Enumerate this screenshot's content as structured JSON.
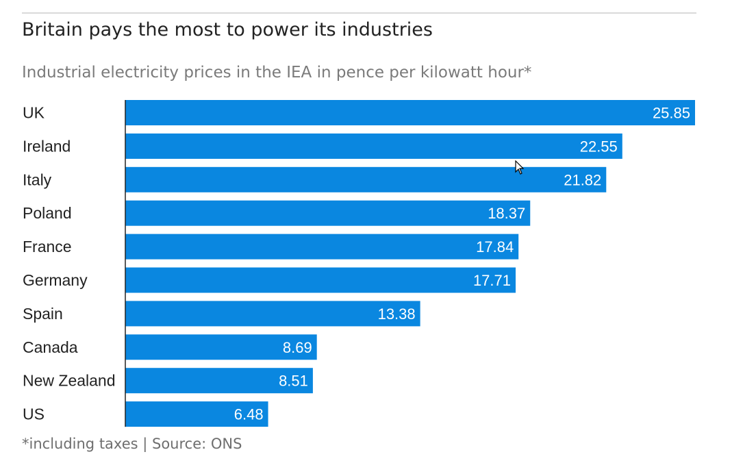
{
  "chart_data": {
    "type": "bar",
    "orientation": "horizontal",
    "title": "Britain pays the most to power its industries",
    "subtitle": "Industrial electricity prices in the IEA in pence per kilowatt hour*",
    "footnote": "*including taxes | Source: ONS",
    "categories": [
      "UK",
      "Ireland",
      "Italy",
      "Poland",
      "France",
      "Germany",
      "Spain",
      "Canada",
      "New Zealand",
      "US"
    ],
    "values": [
      25.85,
      22.55,
      21.82,
      18.37,
      17.84,
      17.71,
      13.38,
      8.69,
      8.51,
      6.48
    ],
    "value_labels": [
      "25.85",
      "22.55",
      "21.82",
      "18.37",
      "17.84",
      "17.71",
      "13.38",
      "8.69",
      "8.51",
      "6.48"
    ],
    "xlim": [
      0,
      25.85
    ],
    "grid": false,
    "bar_color": "#0a87e0",
    "label_color": "#ffffff"
  }
}
